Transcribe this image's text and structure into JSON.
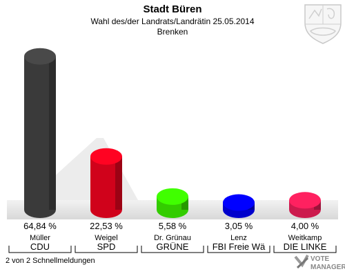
{
  "header": {
    "title": "Stadt Büren",
    "subtitle": "Wahl des/der Landrats/Landrätin 25.05.2014",
    "district": "Brenken"
  },
  "footer": {
    "status": "2 von 2 Schnellmeldungen"
  },
  "logo": {
    "icon": "nrw-coat-of-arms-icon",
    "brand_line1": "VOTE",
    "brand_line2": "MANAGER"
  },
  "chart_data": {
    "type": "bar",
    "title": "Stadt Büren",
    "ylim": [
      0,
      70
    ],
    "categories": [
      "Müller",
      "Weigel",
      "Dr. Grünau",
      "Lenz",
      "Weitkamp"
    ],
    "parties": [
      "CDU",
      "SPD",
      "GRÜNE",
      "FBI Freie Wä",
      "DIE LINKE"
    ],
    "values": [
      64.84,
      22.53,
      5.58,
      3.05,
      4.0
    ],
    "value_labels": [
      "64,84 %",
      "22,53 %",
      "5,58 %",
      "3,05 %",
      "4,00 %"
    ],
    "colors": [
      "#3a3a3a",
      "#d0021b",
      "#33cc00",
      "#0000cc",
      "#cc1a4d"
    ],
    "grid": false,
    "legend": "none"
  }
}
